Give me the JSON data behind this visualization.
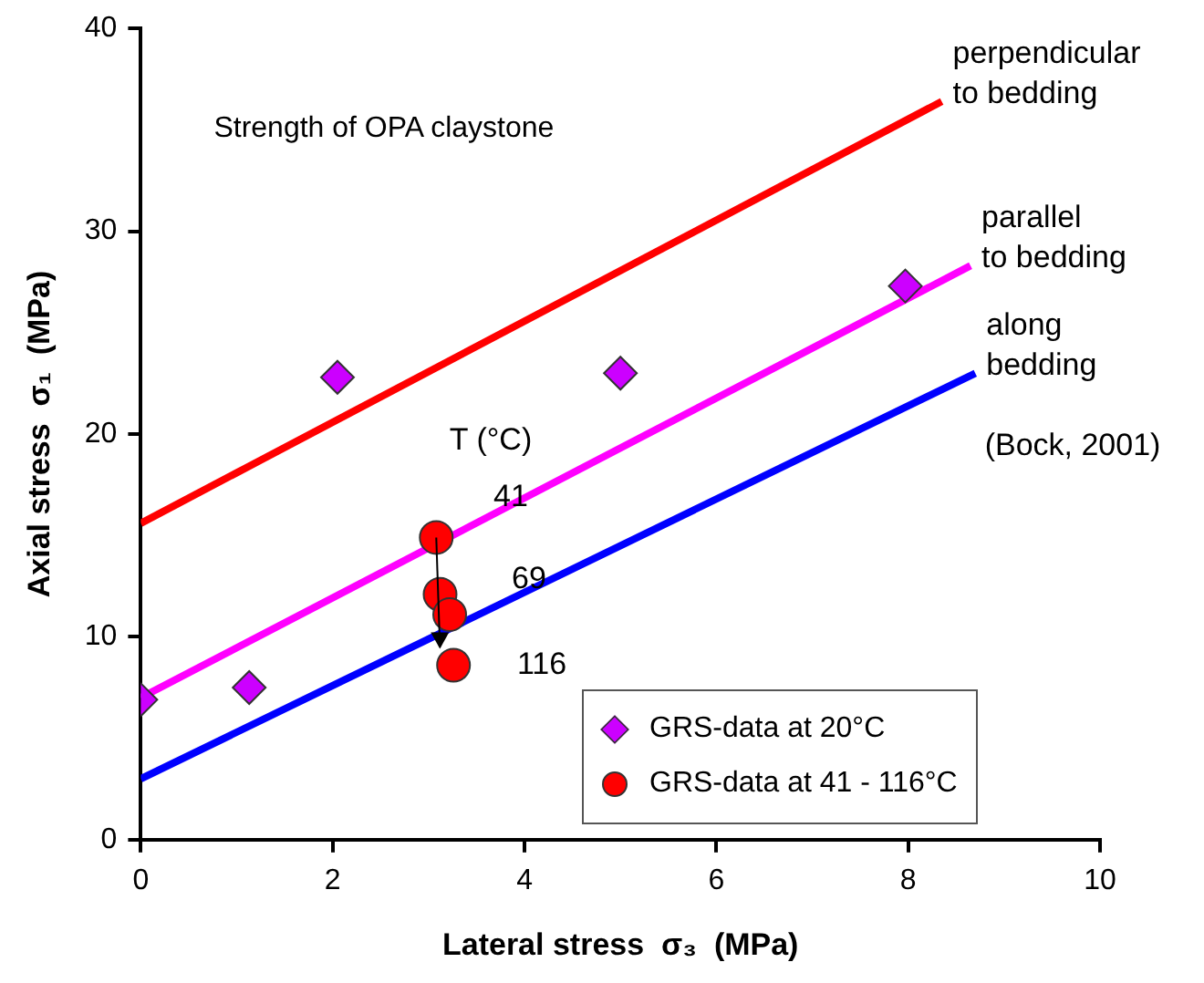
{
  "chart_data": {
    "type": "scatter",
    "title": "Strength of OPA claystone",
    "xlabel": "Lateral stress  σ₃  (MPa)",
    "ylabel": "Axial stress  σ₁  (MPa)",
    "xlim": [
      0,
      10
    ],
    "xticks": [
      0,
      2,
      4,
      6,
      8,
      10
    ],
    "ylim": [
      0,
      40
    ],
    "yticks": [
      0,
      10,
      20,
      30,
      40
    ],
    "grid": false,
    "legend": "bottom right",
    "series": [
      {
        "name": "perpendicular to bedding",
        "type": "line",
        "color": "#ff0000",
        "marker": "none",
        "x": [
          0,
          8.35
        ],
        "values": [
          15.6,
          36.4
        ]
      },
      {
        "name": "parallel to bedding",
        "type": "line",
        "color": "#ff00ff",
        "marker": "none",
        "x": [
          0,
          8.65
        ],
        "values": [
          7.0,
          28.3
        ]
      },
      {
        "name": "along bedding",
        "type": "line",
        "color": "#0000ff",
        "marker": "none",
        "x": [
          0,
          8.7
        ],
        "values": [
          3.0,
          23.0
        ]
      },
      {
        "name": "GRS-data at 20°C",
        "type": "scatter",
        "color": "#cc00ff",
        "marker": "diamond",
        "x": [
          0,
          1.13,
          2.05,
          5.0,
          7.97
        ],
        "values": [
          6.9,
          7.5,
          22.8,
          23.0,
          27.3
        ]
      },
      {
        "name": "GRS-data at 41 - 116°C",
        "type": "scatter",
        "color": "#ff0000",
        "marker": "circle",
        "x": [
          3.08,
          3.12,
          3.22,
          3.26
        ],
        "values": [
          14.9,
          12.1,
          11.1,
          8.6
        ]
      }
    ],
    "annotations": [
      "T (°C)",
      "41",
      "69",
      "116",
      "(Bock, 2001)"
    ]
  }
}
